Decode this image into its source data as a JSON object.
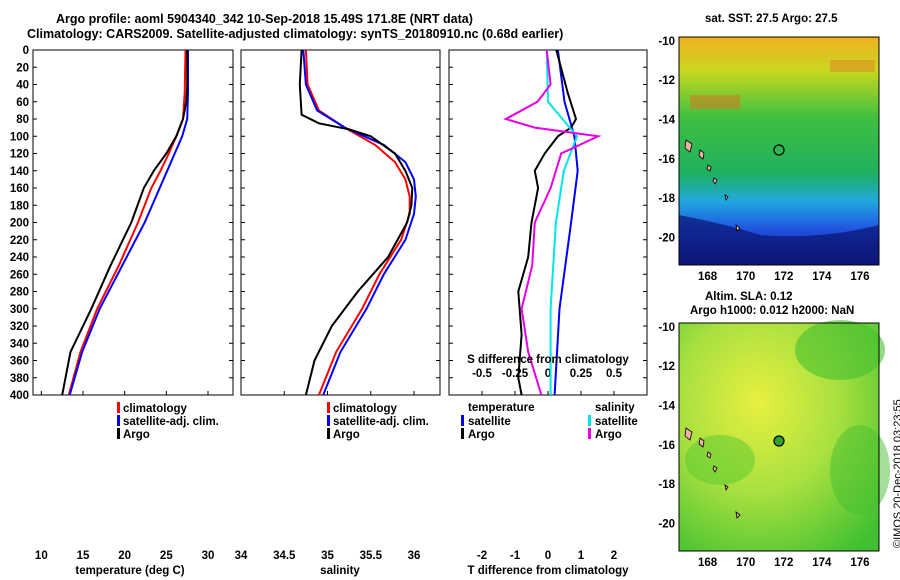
{
  "header": {
    "title_line1": "Argo profile: aoml 5904340_342 10-Sep-2018 15.49S 171.8E (NRT data)",
    "title_line2": "Climatology: CARS2009. Satellite-adjusted climatology: synTS_20180910.nc (0.68d earlier)"
  },
  "maps": {
    "sst_title": "sat. SST: 27.5 Argo: 27.5",
    "sla_title1": "Altim. SLA: 0.12",
    "sla_title2": "Argo h1000: 0.012 h2000: NaN",
    "lon_ticks": [
      "168",
      "170",
      "172",
      "174",
      "176"
    ],
    "lat_ticks": [
      "-10",
      "-12",
      "-14",
      "-16",
      "-18",
      "-20"
    ],
    "argo_position": {
      "lon": 171.8,
      "lat": -15.49
    }
  },
  "footer": {
    "watermark": "©IMOS 20-Dec-2018 03:23:55"
  },
  "colors": {
    "climatology": "#ff0000",
    "satellite_temp": "#0000ff",
    "argo": "#000000",
    "satellite_sal": "#00e5e5",
    "argo_sal": "#e600e6"
  },
  "chart_data": [
    {
      "type": "line",
      "id": "temperature",
      "xlabel": "temperature (deg C)",
      "ylabel": "",
      "xlim": [
        9,
        33
      ],
      "ylim": [
        400,
        0
      ],
      "xticks": [
        "10",
        "15",
        "20",
        "25",
        "30"
      ],
      "yticks": [
        "0",
        "20",
        "40",
        "60",
        "80",
        "100",
        "120",
        "140",
        "160",
        "180",
        "200",
        "220",
        "240",
        "260",
        "280",
        "300",
        "320",
        "340",
        "360",
        "380",
        "400"
      ],
      "legend": [
        "climatology",
        "satellite-adj. clim.",
        "Argo"
      ],
      "series": [
        {
          "name": "climatology",
          "color": "#ff0000",
          "depth": [
            0,
            50,
            80,
            100,
            120,
            140,
            160,
            200,
            250,
            300,
            350,
            400
          ],
          "values": [
            27.3,
            27.2,
            27.0,
            26.2,
            25.3,
            24.3,
            23.2,
            21.6,
            19.3,
            16.7,
            14.7,
            13.3
          ]
        },
        {
          "name": "satellite-adj. clim.",
          "color": "#0000ff",
          "depth": [
            0,
            50,
            80,
            100,
            120,
            140,
            160,
            200,
            250,
            300,
            350,
            400
          ],
          "values": [
            27.6,
            27.6,
            27.5,
            26.9,
            26.0,
            25.1,
            24.2,
            22.4,
            19.7,
            17.0,
            14.9,
            13.4
          ]
        },
        {
          "name": "Argo",
          "color": "#000000",
          "depth": [
            0,
            40,
            60,
            80,
            100,
            120,
            140,
            160,
            200,
            250,
            300,
            350,
            400
          ],
          "values": [
            27.5,
            27.5,
            27.4,
            27.0,
            26.2,
            25.0,
            23.5,
            22.3,
            20.8,
            18.3,
            16.0,
            13.5,
            12.5
          ]
        }
      ]
    },
    {
      "type": "line",
      "id": "salinity",
      "xlabel": "salinity",
      "ylabel": "",
      "xlim": [
        34,
        36.3
      ],
      "ylim": [
        400,
        0
      ],
      "xticks": [
        "34",
        "34.5",
        "35",
        "35.5",
        "36"
      ],
      "legend": [
        "climatology",
        "satellite-adj. clim.",
        "Argo"
      ],
      "series": [
        {
          "name": "climatology",
          "color": "#ff0000",
          "depth": [
            0,
            40,
            70,
            90,
            110,
            130,
            150,
            170,
            190,
            220,
            260,
            300,
            350,
            400
          ],
          "values": [
            34.75,
            34.77,
            34.9,
            35.2,
            35.55,
            35.78,
            35.9,
            35.95,
            35.95,
            35.85,
            35.6,
            35.4,
            35.1,
            34.9
          ]
        },
        {
          "name": "satellite-adj. clim.",
          "color": "#0000ff",
          "depth": [
            0,
            40,
            70,
            90,
            110,
            130,
            150,
            170,
            190,
            220,
            260,
            300,
            350,
            400
          ],
          "values": [
            34.72,
            34.75,
            34.88,
            35.2,
            35.65,
            35.9,
            36.0,
            36.02,
            36.0,
            35.9,
            35.65,
            35.45,
            35.15,
            34.95
          ]
        },
        {
          "name": "Argo",
          "color": "#000000",
          "depth": [
            0,
            40,
            75,
            85,
            92,
            100,
            120,
            140,
            160,
            180,
            200,
            240,
            280,
            320,
            360,
            400
          ],
          "values": [
            34.7,
            34.68,
            34.7,
            34.9,
            35.25,
            35.5,
            35.78,
            35.9,
            35.98,
            35.97,
            35.92,
            35.7,
            35.35,
            35.05,
            34.85,
            34.75
          ]
        }
      ]
    },
    {
      "type": "line",
      "id": "difference",
      "xlabel": "T difference from climatology",
      "xlabel_top": "S difference from climatology",
      "xlim": [
        -3,
        3
      ],
      "ylim": [
        400,
        0
      ],
      "xticks": [
        "-2",
        "-1",
        "0",
        "1",
        "2"
      ],
      "sticks": [
        "-0.5",
        "-0.25",
        "0",
        "0.25",
        "0.5"
      ],
      "legend_groups": [
        {
          "title": "temperature",
          "items": [
            "satellite",
            "Argo"
          ]
        },
        {
          "title": "salinity",
          "items": [
            "satellite",
            "Argo"
          ]
        }
      ],
      "series": [
        {
          "name": "temperature satellite",
          "color": "#0000ff",
          "depth": [
            0,
            60,
            100,
            140,
            200,
            300,
            400
          ],
          "values": [
            0.3,
            0.5,
            0.8,
            0.9,
            0.7,
            0.35,
            0.2
          ]
        },
        {
          "name": "temperature Argo",
          "color": "#000000",
          "depth": [
            0,
            50,
            80,
            90,
            100,
            120,
            140,
            160,
            200,
            240,
            280,
            330,
            380,
            400
          ],
          "values": [
            0.25,
            0.6,
            0.85,
            0.7,
            0.3,
            -0.1,
            -0.4,
            -0.3,
            -0.5,
            -0.6,
            -0.9,
            -0.8,
            -0.9,
            -0.8
          ]
        },
        {
          "name": "salinity satellite",
          "color": "#00e5e5",
          "depth": [
            0,
            60,
            100,
            140,
            200,
            300,
            400
          ],
          "values": [
            -0.01,
            0.0,
            0.22,
            0.12,
            0.06,
            0.02,
            0.02
          ]
        },
        {
          "name": "salinity Argo",
          "color": "#e600e6",
          "depth": [
            0,
            40,
            60,
            80,
            90,
            100,
            120,
            160,
            200,
            250,
            300,
            350,
            400
          ],
          "values": [
            -0.01,
            0.02,
            -0.08,
            -0.32,
            -0.1,
            0.38,
            0.1,
            0.02,
            -0.1,
            -0.12,
            -0.2,
            -0.15,
            -0.05
          ]
        }
      ]
    }
  ]
}
